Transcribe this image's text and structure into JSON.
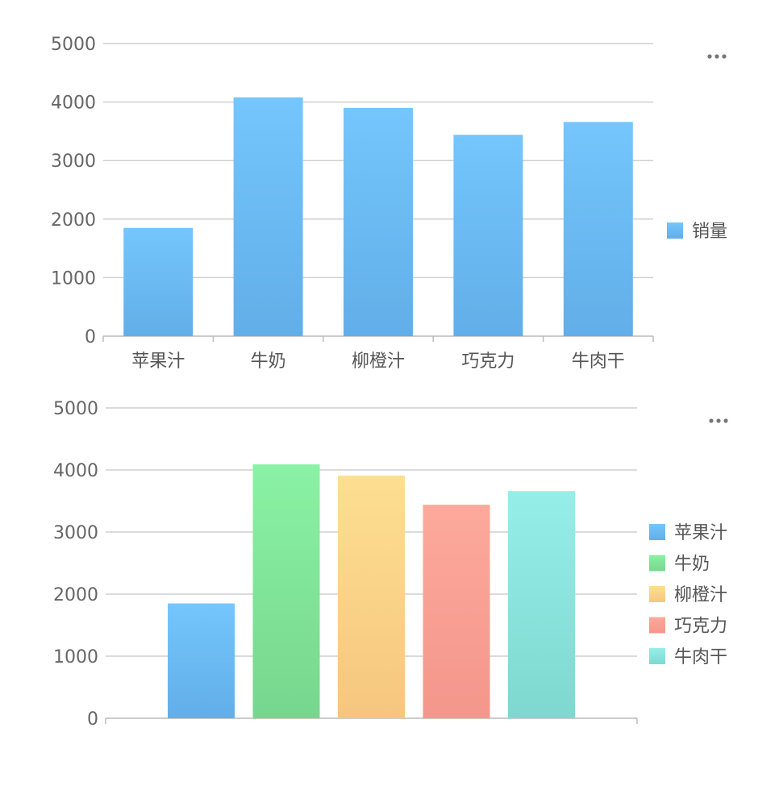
{
  "chart_data": [
    {
      "type": "bar",
      "categories": [
        "苹果汁",
        "牛奶",
        "柳橙汁",
        "巧克力",
        "牛肉干"
      ],
      "series": [
        {
          "name": "销量",
          "values": [
            1850,
            4080,
            3900,
            3440,
            3660
          ]
        }
      ],
      "ylim": [
        0,
        5000
      ],
      "yticks": [
        "0",
        "1000",
        "2000",
        "3000",
        "4000",
        "5000"
      ],
      "grid": true,
      "legend_position": "right",
      "colors": {
        "销量": [
          "#74c6fd",
          "#62aee8"
        ]
      }
    },
    {
      "type": "bar",
      "categories": [
        "苹果汁",
        "牛奶",
        "柳橙汁",
        "巧克力",
        "牛肉干"
      ],
      "values": [
        1850,
        4090,
        3910,
        3440,
        3660
      ],
      "ylim": [
        0,
        5000
      ],
      "yticks": [
        "0",
        "1000",
        "2000",
        "3000",
        "4000",
        "5000"
      ],
      "grid": true,
      "legend_position": "right",
      "colors": [
        [
          "#74c6fd",
          "#62aee8"
        ],
        [
          "#8af2a4",
          "#77d68d"
        ],
        [
          "#fddf90",
          "#f6c67f"
        ],
        [
          "#fca99b",
          "#f4968b"
        ],
        [
          "#95eee8",
          "#7fd8d0"
        ]
      ]
    }
  ],
  "menu_icon": "more-horizontal-icon",
  "more_label": "•••"
}
